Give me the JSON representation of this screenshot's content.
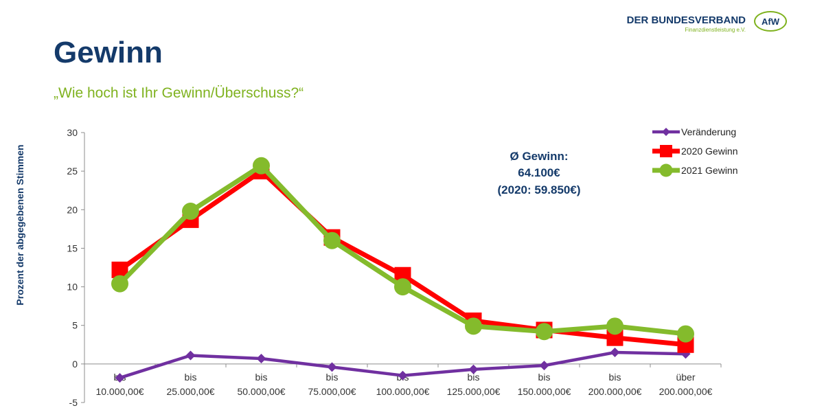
{
  "header": {
    "title": "Gewinn",
    "subtitle": "„Wie hoch ist Ihr Gewinn/Überschuss?“"
  },
  "logo": {
    "name": "DER BUNDESVERBAND",
    "tagline": "Finanzdienstleistung e.V.",
    "mark": "AfW"
  },
  "chart_data": {
    "type": "line",
    "ylabel": "Prozent der abgegebenen Stimmen",
    "ylim": [
      -5,
      30
    ],
    "yticks": [
      -5,
      0,
      5,
      10,
      15,
      20,
      25,
      30
    ],
    "grid": false,
    "legend_position": "top-right",
    "categories": [
      [
        "bis",
        "10.000,00€"
      ],
      [
        "bis",
        "25.000,00€"
      ],
      [
        "bis",
        "50.000,00€"
      ],
      [
        "bis",
        "75.000,00€"
      ],
      [
        "bis",
        "100.000,00€"
      ],
      [
        "bis",
        "125.000,00€"
      ],
      [
        "bis",
        "150.000,00€"
      ],
      [
        "bis",
        "200.000,00€"
      ],
      [
        "über",
        "200.000,00€"
      ]
    ],
    "series": [
      {
        "name": "Veränderung",
        "color": "#7030a0",
        "marker": "diamond",
        "values": [
          -1.8,
          1.1,
          0.7,
          -0.4,
          -1.5,
          -0.7,
          -0.2,
          1.5,
          1.3
        ]
      },
      {
        "name": "2020 Gewinn",
        "color": "#ff0000",
        "marker": "square",
        "values": [
          12.2,
          18.7,
          25.0,
          16.4,
          11.5,
          5.6,
          4.4,
          3.4,
          2.5
        ]
      },
      {
        "name": "2021 Gewinn",
        "color": "#84bb2c",
        "marker": "circle",
        "values": [
          10.4,
          19.8,
          25.7,
          16.0,
          10.0,
          4.9,
          4.2,
          4.9,
          3.9
        ]
      }
    ],
    "annotation": [
      "Ø Gewinn:",
      "64.100€",
      "(2020: 59.850€)"
    ]
  }
}
